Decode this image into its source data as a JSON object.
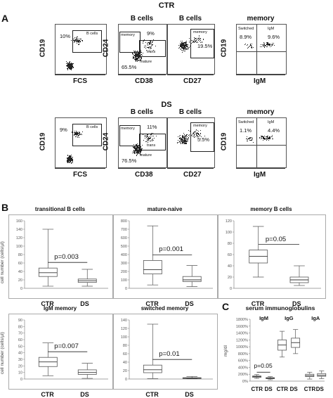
{
  "panel_a": {
    "letter": "A",
    "rows": [
      {
        "title": "CTR",
        "plots": [
          {
            "title": "",
            "x_axis": "FCS",
            "y_axis": "CD19",
            "gate_labels": [
              "B cells"
            ],
            "pcts": [
              "10%"
            ]
          },
          {
            "title": "B cells",
            "x_axis": "CD38",
            "y_axis": "CD24",
            "gate_labels": [
              "memory",
              "trans",
              "mature"
            ],
            "pcts": [
              "9%",
              "65.5%"
            ]
          },
          {
            "title": "B cells",
            "x_axis": "CD27",
            "y_axis": "",
            "gate_labels": [
              "memory"
            ],
            "pcts": [
              "19.5%"
            ]
          },
          {
            "title": "memory",
            "x_axis": "IgM",
            "y_axis": "CD19",
            "gate_labels": [
              "Switched",
              "IgM"
            ],
            "pcts": [
              "8.9%",
              "9.6%"
            ]
          }
        ]
      },
      {
        "title": "DS",
        "plots": [
          {
            "title": "",
            "x_axis": "FCS",
            "y_axis": "CD19",
            "gate_labels": [
              "B cells"
            ],
            "pcts": [
              "9%"
            ]
          },
          {
            "title": "B cells",
            "x_axis": "CD38",
            "y_axis": "CD24",
            "gate_labels": [
              "memory",
              "trans",
              "mature"
            ],
            "pcts": [
              "11%",
              "76.5%"
            ]
          },
          {
            "title": "B cells",
            "x_axis": "CD27",
            "y_axis": "",
            "gate_labels": [
              "memory"
            ],
            "pcts": [
              "5.5%"
            ]
          },
          {
            "title": "memory",
            "x_axis": "IgM",
            "y_axis": "CD19",
            "gate_labels": [
              "Switched",
              "IgM"
            ],
            "pcts": [
              "1.1%",
              "4.4%"
            ]
          }
        ]
      }
    ]
  },
  "panel_b": {
    "letter": "B"
  },
  "panel_c": {
    "letter": "C"
  },
  "chart_data": [
    {
      "type": "boxplot",
      "title": "transitional B cells",
      "ylabel": "cell number (cells/µl)",
      "categories": [
        "CTR",
        "DS"
      ],
      "ylim": [
        0,
        160
      ],
      "yticks": [
        0,
        20,
        40,
        60,
        80,
        100,
        120,
        140,
        160
      ],
      "boxes": [
        {
          "min": 5,
          "q1": 28,
          "median": 37,
          "q3": 48,
          "max": 140
        },
        {
          "min": 5,
          "q1": 14,
          "median": 18,
          "q3": 22,
          "max": 45
        }
      ],
      "annotation": "p=0.003"
    },
    {
      "type": "boxplot",
      "title": "mature-naive",
      "ylabel": "",
      "categories": [
        "CTR",
        "DS"
      ],
      "ylim": [
        0,
        800
      ],
      "yticks": [
        0,
        100,
        200,
        300,
        400,
        500,
        600,
        700,
        800
      ],
      "boxes": [
        {
          "min": 40,
          "q1": 170,
          "median": 220,
          "q3": 330,
          "max": 740
        },
        {
          "min": 20,
          "q1": 80,
          "median": 100,
          "q3": 140,
          "max": 270
        }
      ],
      "annotation": "p=0.001"
    },
    {
      "type": "boxplot",
      "title": "memory B cells",
      "ylabel": "",
      "categories": [
        "CTR",
        "DS"
      ],
      "ylim": [
        0,
        120
      ],
      "yticks": [
        0,
        20,
        40,
        60,
        80,
        100,
        120
      ],
      "boxes": [
        {
          "min": 20,
          "q1": 45,
          "median": 57,
          "q3": 68,
          "max": 110
        },
        {
          "min": 5,
          "q1": 10,
          "median": 15,
          "q3": 20,
          "max": 40
        }
      ],
      "annotation": "p=0.05"
    },
    {
      "type": "boxplot",
      "title": "IgM memory",
      "ylabel": "cell number (cells/µl)",
      "categories": [
        "CTR",
        "DS"
      ],
      "ylim": [
        0,
        90
      ],
      "yticks": [
        0,
        10,
        20,
        30,
        40,
        50,
        60,
        70,
        80,
        90
      ],
      "boxes": [
        {
          "min": 5,
          "q1": 19,
          "median": 26,
          "q3": 33,
          "max": 55
        },
        {
          "min": 1,
          "q1": 7,
          "median": 10,
          "q3": 14,
          "max": 24
        }
      ],
      "annotation": "p=0.007"
    },
    {
      "type": "boxplot",
      "title": "switched memory",
      "ylabel": "",
      "categories": [
        "CTR",
        "DS"
      ],
      "ylim": [
        0,
        140
      ],
      "yticks": [
        0,
        20,
        40,
        60,
        80,
        100,
        120,
        140
      ],
      "boxes": [
        {
          "min": 1,
          "q1": 15,
          "median": 22,
          "q3": 33,
          "max": 130
        },
        {
          "min": 0.5,
          "q1": 1.5,
          "median": 2,
          "q3": 3,
          "max": 6
        }
      ],
      "annotation": "p=0.01"
    },
    {
      "type": "boxplot",
      "title": "serum immunoglobulins",
      "ylabel": "mg/dl",
      "categories": [
        "CTR",
        "DS",
        "CTR",
        "DS",
        "CTR",
        "DS"
      ],
      "ylim": [
        0,
        1800
      ],
      "yticks": [
        0,
        200,
        400,
        600,
        800,
        1000,
        1200,
        1400,
        1600,
        1800
      ],
      "ytick_labels": [
        "0%",
        "200%",
        "400%",
        "600%",
        "800%",
        "1000%",
        "1200%",
        "1400%",
        "1600%",
        "1800%"
      ],
      "groups": [
        "IgM",
        "IgG",
        "IgA"
      ],
      "boxes": [
        {
          "min": 80,
          "q1": 110,
          "median": 130,
          "q3": 150,
          "max": 190
        },
        {
          "min": 40,
          "q1": 70,
          "median": 85,
          "q3": 100,
          "max": 130
        },
        {
          "min": 700,
          "q1": 900,
          "median": 1050,
          "q3": 1200,
          "max": 1450
        },
        {
          "min": 800,
          "q1": 980,
          "median": 1120,
          "q3": 1250,
          "max": 1500
        },
        {
          "min": 60,
          "q1": 130,
          "median": 160,
          "q3": 200,
          "max": 260
        },
        {
          "min": 70,
          "q1": 140,
          "median": 170,
          "q3": 220,
          "max": 300
        }
      ],
      "annotation": "p=0.05"
    }
  ]
}
